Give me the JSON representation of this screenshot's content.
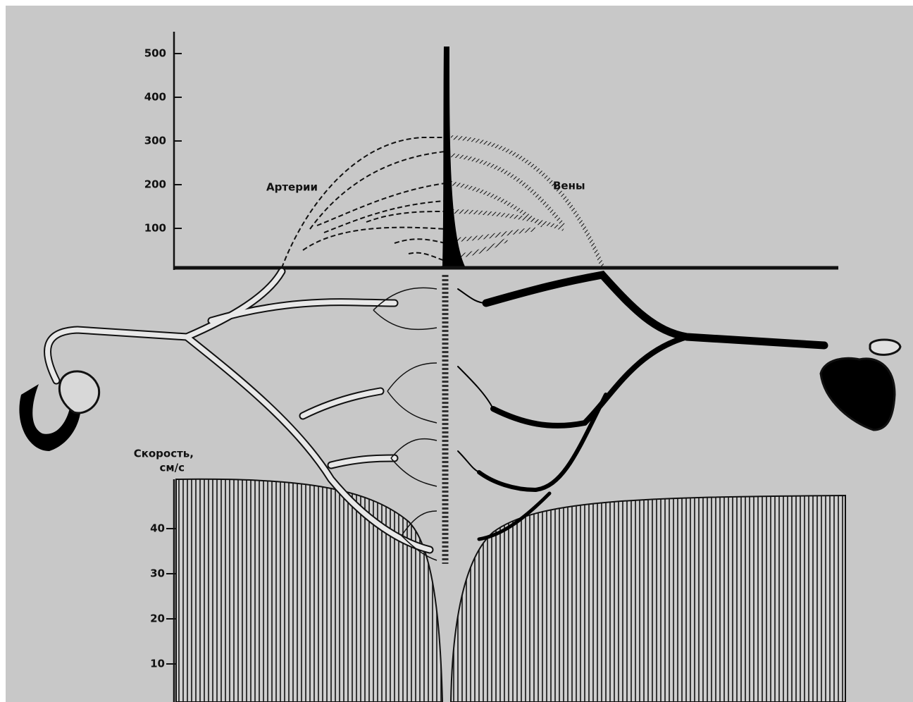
{
  "top_chart": {
    "yticks": [
      100,
      200,
      300,
      400,
      500
    ],
    "labels": [
      "Артерии",
      "Вены"
    ]
  },
  "bottom_chart": {
    "y_label_lines": [
      "Скорость,",
      "см/с"
    ],
    "yticks": [
      10,
      20,
      30,
      40
    ]
  }
}
